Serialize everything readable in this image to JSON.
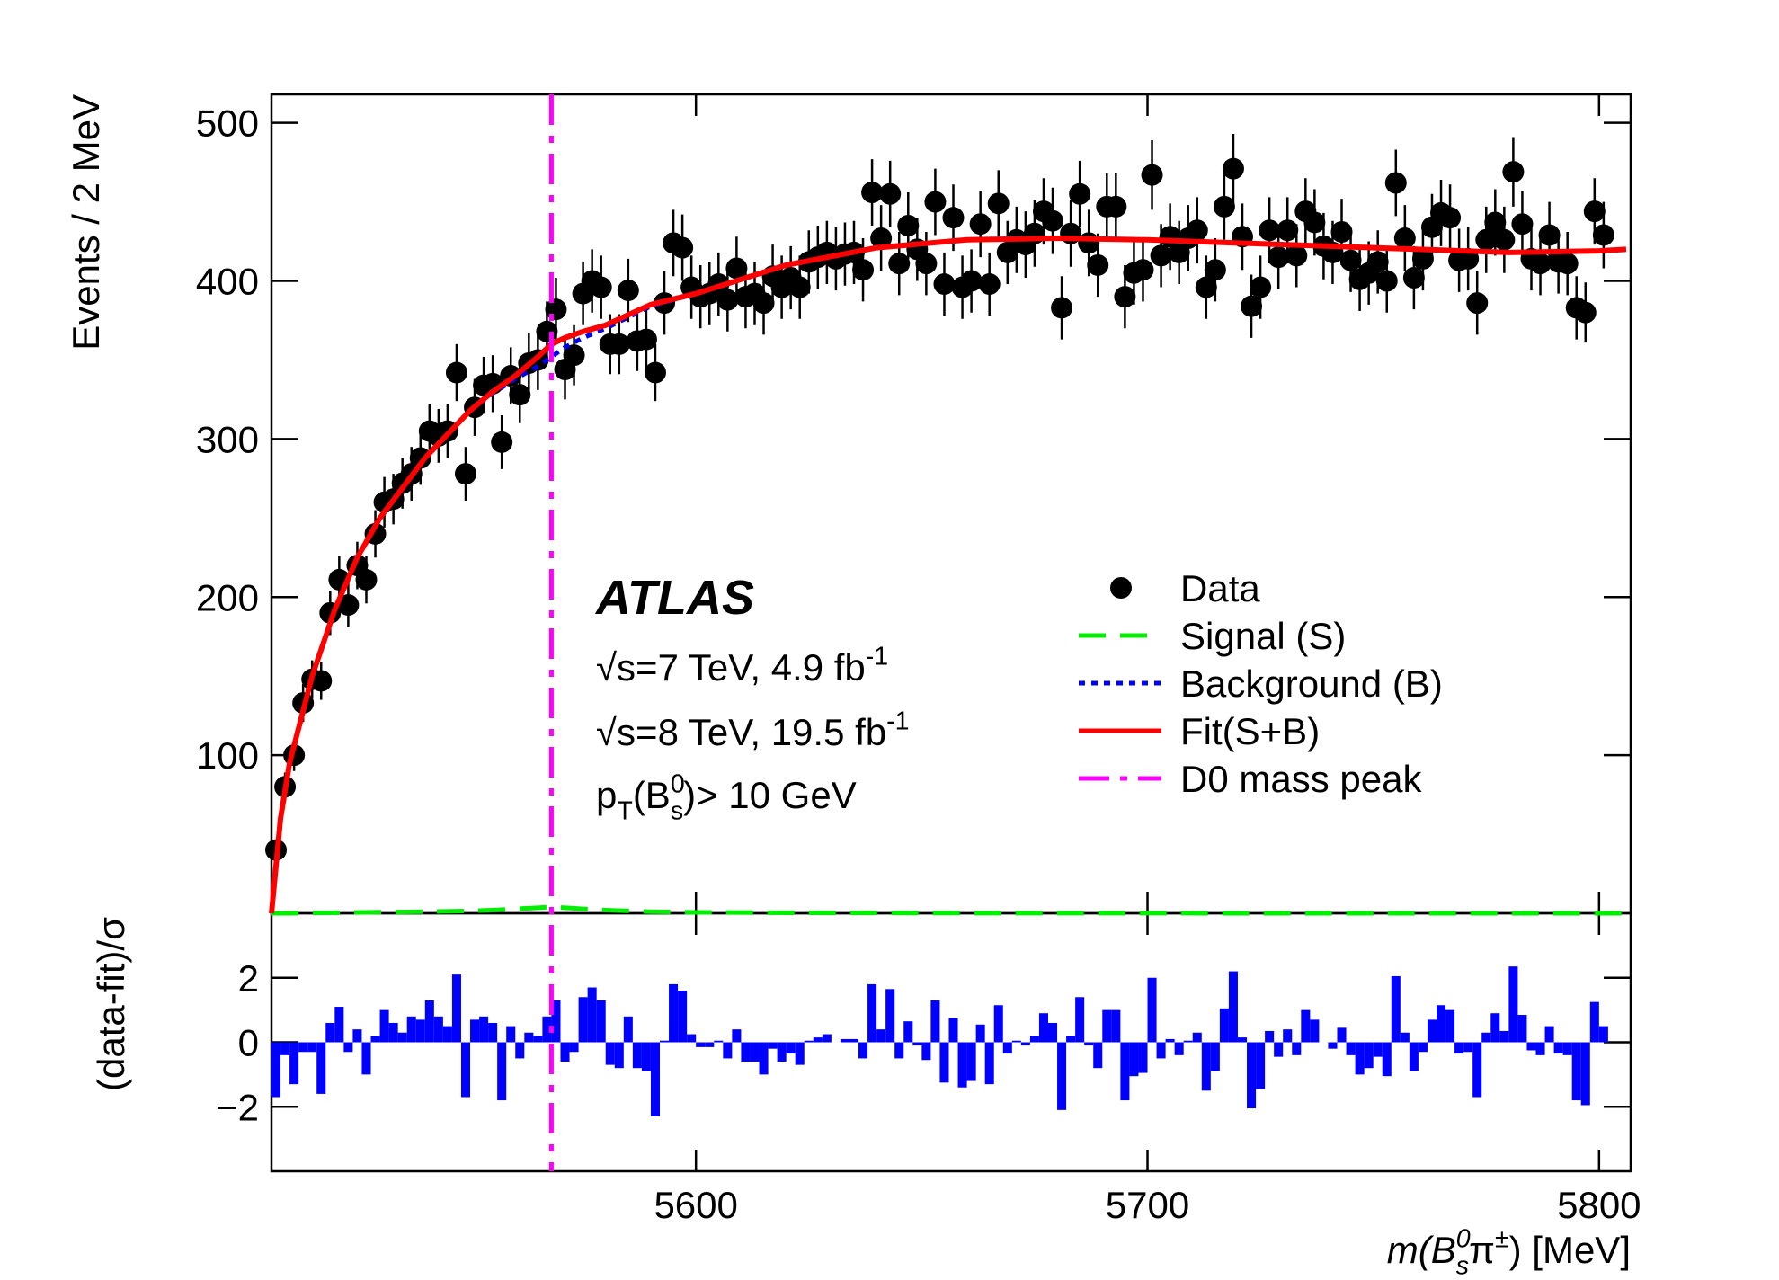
{
  "chart_data": [
    {
      "type": "scatter",
      "ylabel": "Events / 2 MeV",
      "xlim": [
        5506,
        5807
      ],
      "ylim": [
        0,
        518
      ],
      "yticks": [
        100,
        200,
        300,
        400,
        500
      ],
      "series": [
        {
          "name": "Data",
          "type": "scatter",
          "color": "#000000",
          "x": [
            5507,
            5509,
            5511,
            5513,
            5515,
            5517,
            5519,
            5521,
            5523,
            5525,
            5527,
            5529,
            5531,
            5533,
            5535,
            5537,
            5539,
            5541,
            5543,
            5545,
            5547,
            5549,
            5551,
            5553,
            5555,
            5557,
            5559,
            5561,
            5563,
            5565,
            5567,
            5569,
            5571,
            5573,
            5575,
            5577,
            5579,
            5581,
            5583,
            5585,
            5587,
            5589,
            5591,
            5593,
            5595,
            5597,
            5599,
            5601,
            5603,
            5605,
            5607,
            5609,
            5611,
            5613,
            5615,
            5617,
            5619,
            5621,
            5623,
            5625,
            5627,
            5629,
            5631,
            5633,
            5635,
            5637,
            5639,
            5641,
            5643,
            5645,
            5647,
            5649,
            5651,
            5653,
            5655,
            5657,
            5659,
            5661,
            5663,
            5665,
            5667,
            5669,
            5671,
            5673,
            5675,
            5677,
            5679,
            5681,
            5683,
            5685,
            5687,
            5689,
            5691,
            5693,
            5695,
            5697,
            5699,
            5701,
            5703,
            5705,
            5707,
            5709,
            5711,
            5713,
            5715,
            5717,
            5719,
            5721,
            5723,
            5725,
            5727,
            5729,
            5731,
            5733,
            5735,
            5737,
            5739,
            5741,
            5743,
            5745,
            5747,
            5749,
            5751,
            5753,
            5755,
            5757,
            5759,
            5761,
            5763,
            5765,
            5767,
            5769,
            5771,
            5773,
            5775,
            5777,
            5779,
            5781,
            5783,
            5785,
            5787,
            5789,
            5791,
            5793,
            5795,
            5797,
            5799,
            5801
          ],
          "values": [
            40,
            80,
            100,
            133,
            148,
            147,
            190,
            211,
            195,
            220,
            211,
            240,
            260,
            262,
            272,
            278,
            288,
            305,
            302,
            305,
            342,
            278,
            320,
            334,
            335,
            298,
            340,
            328,
            348,
            350,
            368,
            382,
            344,
            353,
            392,
            400,
            396,
            360,
            360,
            394,
            362,
            363,
            342,
            386,
            424,
            421,
            396,
            390,
            392,
            398,
            388,
            408,
            390,
            392,
            386,
            403,
            396,
            402,
            396,
            412,
            415,
            418,
            414,
            417,
            418,
            407,
            456,
            427,
            455,
            411,
            435,
            420,
            411,
            450,
            398,
            440,
            396,
            400,
            436,
            398,
            449,
            418,
            426,
            423,
            430,
            444,
            438,
            383,
            430,
            455,
            424,
            410,
            447,
            447,
            390,
            405,
            407,
            467,
            416,
            428,
            418,
            427,
            432,
            396,
            407,
            447,
            471,
            428,
            384,
            396,
            432,
            415,
            432,
            416,
            444,
            437,
            422,
            418,
            431,
            413,
            401,
            405,
            412,
            400,
            462,
            427,
            402,
            414,
            434,
            443,
            440,
            413,
            414,
            386,
            426,
            437,
            426,
            469,
            436,
            414,
            411,
            429,
            412,
            411,
            383,
            380,
            444,
            429
          ],
          "errors": [
            6,
            9,
            10,
            12,
            12,
            12,
            14,
            15,
            14,
            15,
            15,
            15,
            16,
            16,
            16,
            17,
            17,
            17,
            17,
            17,
            18,
            17,
            18,
            18,
            18,
            17,
            18,
            18,
            19,
            19,
            19,
            20,
            19,
            19,
            20,
            20,
            20,
            19,
            19,
            20,
            19,
            19,
            18,
            20,
            21,
            21,
            20,
            20,
            20,
            20,
            20,
            20,
            20,
            20,
            20,
            20,
            20,
            20,
            20,
            20,
            20,
            20,
            20,
            20,
            20,
            20,
            21,
            21,
            21,
            20,
            21,
            20,
            20,
            21,
            20,
            21,
            20,
            20,
            21,
            20,
            21,
            20,
            21,
            21,
            21,
            21,
            21,
            20,
            21,
            21,
            21,
            20,
            21,
            21,
            20,
            20,
            20,
            22,
            20,
            21,
            20,
            21,
            21,
            20,
            20,
            21,
            22,
            21,
            20,
            20,
            21,
            20,
            21,
            20,
            21,
            21,
            21,
            20,
            21,
            20,
            20,
            20,
            20,
            20,
            21,
            21,
            20,
            20,
            21,
            21,
            21,
            20,
            20,
            20,
            21,
            21,
            21,
            22,
            21,
            20,
            20,
            21,
            20,
            20,
            20,
            19,
            21,
            21
          ]
        },
        {
          "name": "Signal (S)",
          "type": "line",
          "style": "dashed",
          "color": "#00ee00",
          "x": [
            5506,
            5508,
            5510,
            5515,
            5520,
            5525,
            5530,
            5540,
            5550,
            5555,
            5560,
            5565,
            5568,
            5571,
            5575,
            5580,
            5590,
            5600,
            5620,
            5640,
            5660,
            5680,
            5700,
            5720,
            5740,
            5760,
            5780,
            5800,
            5806
          ],
          "values": [
            0,
            0,
            0,
            0.2,
            0.3,
            0.5,
            0.7,
            1,
            1.5,
            2,
            2.8,
            3.5,
            4,
            3.5,
            2.8,
            2,
            1,
            0.6,
            0.3,
            0.2,
            0.1,
            0.1,
            0.1,
            0,
            0,
            0,
            0,
            0,
            0
          ]
        },
        {
          "name": "Background (B)",
          "type": "line",
          "style": "dotted",
          "color": "#0000ee",
          "x": [
            5506,
            5508,
            5510,
            5515,
            5520,
            5525,
            5530,
            5540,
            5550,
            5555,
            5560,
            5565,
            5568,
            5571,
            5575,
            5580,
            5590,
            5600,
            5620,
            5640,
            5660,
            5680,
            5700,
            5720,
            5740,
            5760,
            5780,
            5800,
            5806
          ],
          "values": [
            0,
            60,
            95,
            150,
            192,
            225,
            250,
            288,
            318,
            329,
            338,
            346,
            352,
            358,
            364,
            370,
            384,
            392,
            410,
            421,
            426,
            427,
            426,
            424,
            422,
            420,
            418,
            419,
            420
          ]
        },
        {
          "name": "Fit(S+B)",
          "type": "line",
          "style": "solid",
          "color": "#ff0000",
          "x": [
            5506,
            5508,
            5510,
            5515,
            5520,
            5525,
            5530,
            5540,
            5550,
            5555,
            5560,
            5565,
            5568,
            5571,
            5575,
            5580,
            5590,
            5600,
            5620,
            5640,
            5660,
            5680,
            5700,
            5720,
            5740,
            5760,
            5780,
            5800,
            5806
          ],
          "values": [
            0,
            60,
            95,
            150,
            192,
            225,
            250,
            288,
            318,
            330,
            340,
            352,
            360,
            364,
            368,
            372,
            385,
            392,
            410,
            421,
            426,
            427,
            426,
            424,
            422,
            420,
            418,
            419,
            420
          ]
        },
        {
          "name": "D0 mass peak",
          "type": "vline",
          "style": "dashdot",
          "color": "#ff00ff",
          "x": [
            5568
          ]
        }
      ],
      "annotations": [
        {
          "bold": true,
          "parts": [
            {
              "text": "ATLAS",
              "italic": true
            }
          ]
        },
        {
          "parts": [
            {
              "text": "√s=7 TeV, 4.9 fb"
            },
            {
              "text": "-1",
              "pos": "sup"
            }
          ]
        },
        {
          "parts": [
            {
              "text": "√s=8 TeV, 19.5 fb"
            },
            {
              "text": "-1",
              "pos": "sup"
            }
          ]
        },
        {
          "parts": [
            {
              "text": "p"
            },
            {
              "text": "T",
              "pos": "sub"
            },
            {
              "text": "(B"
            },
            {
              "text": "0",
              "pos": "sup"
            },
            {
              "text": "s",
              "pos": "sub"
            },
            {
              "text": ")> 10 GeV"
            }
          ]
        }
      ]
    },
    {
      "type": "bar",
      "ylabel": "(data-fit)/σ",
      "xlabel": {
        "parts": [
          {
            "text": "m",
            "italic": true
          },
          {
            "text": "(B",
            "italic": true
          },
          {
            "text": "0",
            "pos": "sup",
            "italic": true
          },
          {
            "text": "s",
            "pos": "sub",
            "italic": true
          },
          {
            "text": "π"
          },
          {
            "text": "±",
            "pos": "sup"
          },
          {
            "text": ") [MeV]"
          }
        ]
      },
      "color": "#0000ff",
      "xlim": [
        5506,
        5807
      ],
      "xticks": [
        5600,
        5700,
        5800
      ],
      "ylim": [
        -4,
        4
      ],
      "yticks": [
        {
          "value": -2,
          "label": "−2"
        },
        0,
        2
      ],
      "x": [
        5507,
        5509,
        5511,
        5513,
        5515,
        5517,
        5519,
        5521,
        5523,
        5525,
        5527,
        5529,
        5531,
        5533,
        5535,
        5537,
        5539,
        5541,
        5543,
        5545,
        5547,
        5549,
        5551,
        5553,
        5555,
        5557,
        5559,
        5561,
        5563,
        5565,
        5567,
        5569,
        5571,
        5573,
        5575,
        5577,
        5579,
        5581,
        5583,
        5585,
        5587,
        5589,
        5591,
        5593,
        5595,
        5597,
        5599,
        5601,
        5603,
        5605,
        5607,
        5609,
        5611,
        5613,
        5615,
        5617,
        5619,
        5621,
        5623,
        5625,
        5627,
        5629,
        5631,
        5633,
        5635,
        5637,
        5639,
        5641,
        5643,
        5645,
        5647,
        5649,
        5651,
        5653,
        5655,
        5657,
        5659,
        5661,
        5663,
        5665,
        5667,
        5669,
        5671,
        5673,
        5675,
        5677,
        5679,
        5681,
        5683,
        5685,
        5687,
        5689,
        5691,
        5693,
        5695,
        5697,
        5699,
        5701,
        5703,
        5705,
        5707,
        5709,
        5711,
        5713,
        5715,
        5717,
        5719,
        5721,
        5723,
        5725,
        5727,
        5729,
        5731,
        5733,
        5735,
        5737,
        5739,
        5741,
        5743,
        5745,
        5747,
        5749,
        5751,
        5753,
        5755,
        5757,
        5759,
        5761,
        5763,
        5765,
        5767,
        5769,
        5771,
        5773,
        5775,
        5777,
        5779,
        5781,
        5783,
        5785,
        5787,
        5789,
        5791,
        5793,
        5795,
        5797,
        5799,
        5801
      ],
      "values": [
        -1.7,
        -0.4,
        -1.3,
        -0.3,
        -0.3,
        -1.6,
        0.6,
        1.1,
        -0.3,
        0.4,
        -1.0,
        0.2,
        1.0,
        0.6,
        0.3,
        0.8,
        0.7,
        1.3,
        0.8,
        0.5,
        2.1,
        -1.7,
        0.7,
        0.8,
        0.6,
        -1.8,
        0.5,
        -0.5,
        0.3,
        0.2,
        0.8,
        1.3,
        -0.6,
        -0.3,
        1.4,
        1.7,
        1.3,
        -0.7,
        -0.8,
        0.8,
        -0.8,
        -0.9,
        -2.3,
        0.05,
        1.8,
        1.6,
        0.25,
        -0.15,
        -0.15,
        0.05,
        -0.5,
        0.4,
        -0.6,
        -0.6,
        -1.0,
        -0.2,
        -0.6,
        -0.35,
        -0.7,
        0.05,
        0.15,
        0.25,
        0,
        0.1,
        0.1,
        -0.5,
        1.8,
        0.4,
        1.65,
        -0.5,
        0.65,
        -0.1,
        -0.55,
        1.3,
        -1.25,
        0.75,
        -1.4,
        -1.2,
        0.55,
        -1.3,
        1.15,
        -0.35,
        0.05,
        -0.1,
        0.2,
        0.9,
        0.6,
        -2.1,
        0.2,
        1.4,
        -0.1,
        -0.8,
        1.0,
        1.0,
        -1.8,
        -1.05,
        -0.95,
        2.0,
        -0.5,
        0.1,
        -0.4,
        0.05,
        0.3,
        -1.5,
        -0.9,
        1.05,
        2.2,
        0.15,
        -2.05,
        -1.45,
        0.35,
        -0.45,
        0.4,
        -0.4,
        1.0,
        0.7,
        0,
        -0.2,
        0.45,
        -0.4,
        -1.0,
        -0.8,
        -0.45,
        -1.05,
        2.05,
        0.3,
        -0.9,
        -0.3,
        0.7,
        1.15,
        1.0,
        -0.35,
        -0.3,
        -1.7,
        0.3,
        0.9,
        0.35,
        2.35,
        0.85,
        -0.25,
        -0.4,
        0.5,
        -0.35,
        -0.4,
        -1.8,
        -1.95,
        1.25,
        0.5
      ]
    }
  ]
}
